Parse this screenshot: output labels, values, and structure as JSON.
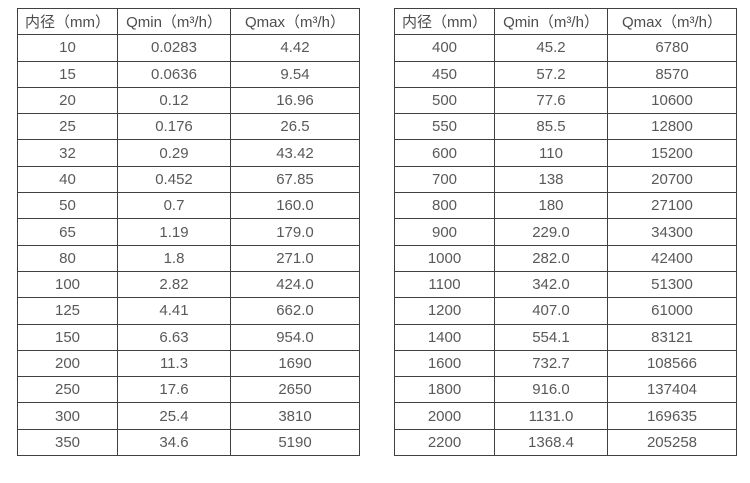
{
  "columns": [
    "内径（mm）",
    "Qmin（m³/h）",
    "Qmax（m³/h）"
  ],
  "tables": [
    {
      "name": "flow-rate-table-left",
      "rows": [
        [
          "10",
          "0.0283",
          "4.42"
        ],
        [
          "15",
          "0.0636",
          "9.54"
        ],
        [
          "20",
          "0.12",
          "16.96"
        ],
        [
          "25",
          "0.176",
          "26.5"
        ],
        [
          "32",
          "0.29",
          "43.42"
        ],
        [
          "40",
          "0.452",
          "67.85"
        ],
        [
          "50",
          "0.7",
          "160.0"
        ],
        [
          "65",
          "1.19",
          "179.0"
        ],
        [
          "80",
          "1.8",
          "271.0"
        ],
        [
          "100",
          "2.82",
          "424.0"
        ],
        [
          "125",
          "4.41",
          "662.0"
        ],
        [
          "150",
          "6.63",
          "954.0"
        ],
        [
          "200",
          "11.3",
          "1690"
        ],
        [
          "250",
          "17.6",
          "2650"
        ],
        [
          "300",
          "25.4",
          "3810"
        ],
        [
          "350",
          "34.6",
          "5190"
        ]
      ]
    },
    {
      "name": "flow-rate-table-right",
      "rows": [
        [
          "400",
          "45.2",
          "6780"
        ],
        [
          "450",
          "57.2",
          "8570"
        ],
        [
          "500",
          "77.6",
          "10600"
        ],
        [
          "550",
          "85.5",
          "12800"
        ],
        [
          "600",
          "110",
          "15200"
        ],
        [
          "700",
          "138",
          "20700"
        ],
        [
          "800",
          "180",
          "27100"
        ],
        [
          "900",
          "229.0",
          "34300"
        ],
        [
          "1000",
          "282.0",
          "42400"
        ],
        [
          "1100",
          "342.0",
          "51300"
        ],
        [
          "1200",
          "407.0",
          "61000"
        ],
        [
          "1400",
          "554.1",
          "83121"
        ],
        [
          "1600",
          "732.7",
          "108566"
        ],
        [
          "1800",
          "916.0",
          "137404"
        ],
        [
          "2000",
          "1131.0",
          "169635"
        ],
        [
          "2200",
          "1368.4",
          "205258"
        ]
      ]
    }
  ]
}
